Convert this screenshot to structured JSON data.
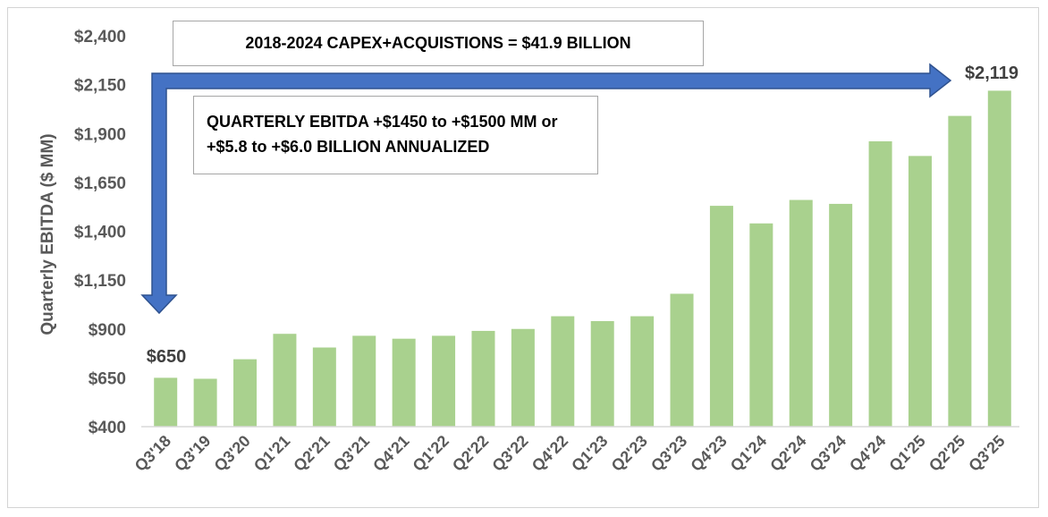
{
  "chart_data": {
    "type": "bar",
    "ylabel": "Quarterly  EBITDA ($ MM)",
    "ylim": [
      400,
      2400
    ],
    "yticks": [
      400,
      650,
      900,
      1150,
      1400,
      1650,
      1900,
      2150,
      2400
    ],
    "ytick_labels": [
      "$400",
      "$650",
      "$900",
      "$1,150",
      "$1,400",
      "$1,650",
      "$1,900",
      "$2,150",
      "$2,400"
    ],
    "categories": [
      "Q3'18",
      "Q3'19",
      "Q3'20",
      "Q1'21",
      "Q2'21",
      "Q3'21",
      "Q4'21",
      "Q1'22",
      "Q2'22",
      "Q3'22",
      "Q4'22",
      "Q1'23",
      "Q2'23",
      "Q3'23",
      "Q4'23",
      "Q1'24",
      "Q2'24",
      "Q3'24",
      "Q4'24",
      "Q1'25",
      "Q2'25",
      "Q3'25"
    ],
    "values": [
      650,
      645,
      745,
      875,
      805,
      865,
      850,
      865,
      890,
      900,
      965,
      940,
      965,
      1080,
      1530,
      1440,
      1560,
      1540,
      1860,
      1785,
      1990,
      2119
    ],
    "bar_color": "#a9d18e",
    "arrow_color": "#4472c4",
    "data_labels": {
      "first": "$650",
      "last": "$2,119"
    },
    "annotations": {
      "capex": "2018-2024 CAPEX+ACQUISTIONS = $41.9 BILLION",
      "ebitda_line1": "QUARTERLY EBITDA +$1450 to +$1500 MM or",
      "ebitda_line2": "+$5.8 to +$6.0 BILLION ANNUALIZED"
    }
  }
}
